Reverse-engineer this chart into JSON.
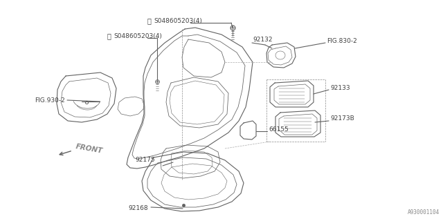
{
  "bg_color": "#ffffff",
  "line_color": "#606060",
  "text_color": "#404040",
  "fig_width": 6.4,
  "fig_height": 3.2,
  "watermark": "A930001104",
  "labels": {
    "s1": "S048605203(4)",
    "s2": "S048605203(4)",
    "fig930": "FIG.930-2",
    "fig830": "FIG.830-2",
    "p92132": "92132",
    "p92133": "92133",
    "p92173B": "92173B",
    "p66155": "66155",
    "p92175": "92175",
    "p92168": "92168",
    "front": "FRONT"
  }
}
